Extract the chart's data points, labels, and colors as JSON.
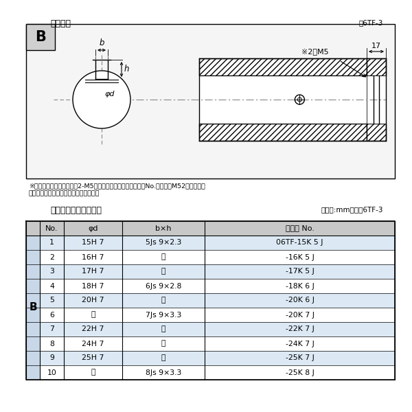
{
  "title_top": "軸穴形状",
  "fig_label_top": "図6TF-3",
  "section_label": "B",
  "note_line1": "※セットボルト用タップ（2-M5）が必要な場合は右記コードNo.の末尾にM52を付ける。",
  "note_line2": "（セットボルトは付属されています。）",
  "title_bottom": "軸穴形状コード一覧表",
  "unit_label": "（単位:mm）　表6TF-3",
  "table_headers": [
    "No.",
    "φd",
    "b×h",
    "コード No."
  ],
  "table_rows": [
    [
      "1",
      "15H 7",
      "5Js 9×2.3",
      "06TF-15K 5 J"
    ],
    [
      "2",
      "16H 7",
      "〃",
      "-16K 5 J"
    ],
    [
      "3",
      "17H 7",
      "〃",
      "-17K 5 J"
    ],
    [
      "4",
      "18H 7",
      "6Js 9×2.8",
      "-18K 6 J"
    ],
    [
      "5",
      "20H 7",
      "〃",
      "-20K 6 J"
    ],
    [
      "6",
      "〃",
      "7Js 9×3.3",
      "-20K 7 J"
    ],
    [
      "7",
      "22H 7",
      "〃",
      "-22K 7 J"
    ],
    [
      "8",
      "24H 7",
      "〃",
      "-24K 7 J"
    ],
    [
      "9",
      "25H 7",
      "〃",
      "-25K 7 J"
    ],
    [
      "10",
      "〃",
      "8Js 9×3.3",
      "-25K 8 J"
    ]
  ],
  "bg_color": "#ffffff",
  "line_color": "#000000",
  "table_alt_color": "#dce6f1",
  "table_header_color": "#c0c0c0",
  "B_cell_color": "#b8c8d8",
  "hatch_facecolor": "#ffffff"
}
